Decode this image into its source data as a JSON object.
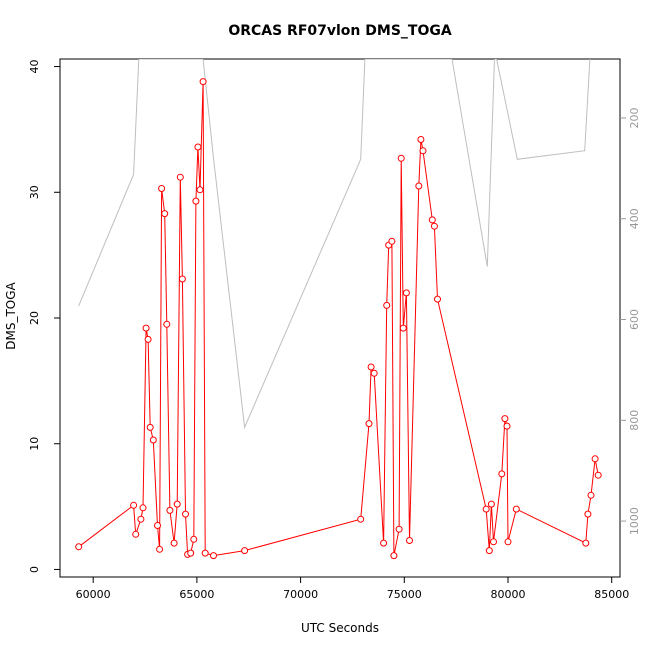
{
  "chart_data": {
    "type": "line",
    "title": "ORCAS RF07vlon DMS_TOGA",
    "xlabel": "UTC Seconds",
    "ylabel": "DMS_TOGA",
    "xlim": [
      58400,
      85400
    ],
    "ylim": [
      -0.6,
      40.6
    ],
    "x_ticks": [
      60000,
      65000,
      70000,
      75000,
      80000,
      85000
    ],
    "y_ticks": [
      0,
      10,
      20,
      30,
      40
    ],
    "y2_ticks": [
      200,
      400,
      600,
      800,
      1000
    ],
    "y2lim": [
      83,
      1111
    ],
    "grid": false,
    "colors": {
      "dms": "#ff0000",
      "altitude": "#bebebe"
    },
    "series": [
      {
        "role": "dms",
        "axis": "left",
        "markers": "open-circle",
        "points": [
          [
            59300,
            1.8
          ],
          [
            61950,
            5.1
          ],
          [
            62050,
            2.8
          ],
          [
            62300,
            4.0
          ],
          [
            62400,
            4.9
          ],
          [
            62550,
            19.2
          ],
          [
            62650,
            18.3
          ],
          [
            62750,
            11.3
          ],
          [
            62900,
            10.3
          ],
          [
            63100,
            3.5
          ],
          [
            63200,
            1.6
          ],
          [
            63300,
            30.3
          ],
          [
            63450,
            28.3
          ],
          [
            63550,
            19.5
          ],
          [
            63700,
            4.7
          ],
          [
            63900,
            2.1
          ],
          [
            64050,
            5.2
          ],
          [
            64200,
            31.2
          ],
          [
            64300,
            23.1
          ],
          [
            64450,
            4.4
          ],
          [
            64550,
            1.2
          ],
          [
            64700,
            1.3
          ],
          [
            64850,
            2.4
          ],
          [
            64950,
            29.3
          ],
          [
            65050,
            33.6
          ],
          [
            65150,
            30.2
          ],
          [
            65300,
            38.8
          ],
          [
            65400,
            1.3
          ],
          [
            65800,
            1.1
          ],
          [
            67300,
            1.5
          ],
          [
            72900,
            4.0
          ],
          [
            73300,
            11.6
          ],
          [
            73400,
            16.1
          ],
          [
            73550,
            15.6
          ],
          [
            74000,
            2.1
          ],
          [
            74150,
            21.0
          ],
          [
            74250,
            25.8
          ],
          [
            74400,
            26.1
          ],
          [
            74500,
            1.1
          ],
          [
            74750,
            3.2
          ],
          [
            74850,
            32.7
          ],
          [
            74950,
            19.2
          ],
          [
            75100,
            22.0
          ],
          [
            75250,
            2.3
          ],
          [
            75700,
            30.5
          ],
          [
            75800,
            34.2
          ],
          [
            75900,
            33.3
          ],
          [
            76350,
            27.8
          ],
          [
            76450,
            27.3
          ],
          [
            76600,
            21.5
          ],
          [
            78950,
            4.8
          ],
          [
            79100,
            1.5
          ],
          [
            79200,
            5.2
          ],
          [
            79300,
            2.2
          ],
          [
            79700,
            7.6
          ],
          [
            79850,
            12.0
          ],
          [
            79950,
            11.4
          ],
          [
            80000,
            2.2
          ],
          [
            80400,
            4.8
          ],
          [
            83750,
            2.1
          ],
          [
            83850,
            4.4
          ],
          [
            84000,
            5.9
          ],
          [
            84200,
            8.8
          ],
          [
            84350,
            7.5
          ]
        ]
      },
      {
        "role": "altitude",
        "axis": "right",
        "markers": "none",
        "points": [
          [
            59300,
            573
          ],
          [
            61950,
            312
          ],
          [
            62200,
            83
          ],
          [
            64300,
            83
          ],
          [
            65300,
            83
          ],
          [
            65800,
            280
          ],
          [
            67300,
            814
          ],
          [
            72900,
            282
          ],
          [
            73100,
            83
          ],
          [
            77300,
            83
          ],
          [
            79000,
            495
          ],
          [
            79350,
            83
          ],
          [
            79450,
            83
          ],
          [
            80450,
            282
          ],
          [
            83700,
            265
          ],
          [
            83950,
            83
          ]
        ]
      }
    ]
  }
}
